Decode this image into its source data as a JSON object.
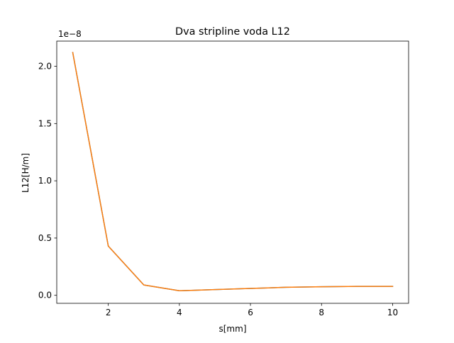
{
  "chart_data": {
    "type": "line",
    "title": "Dva stripline voda L12",
    "xlabel": "s[mm]",
    "ylabel": "L12[H/m]",
    "y_offset_label": "1e−8",
    "y_scale": 1e-08,
    "xlim": [
      0.55,
      10.45
    ],
    "ylim": [
      -0.07,
      2.22
    ],
    "x_ticks": [
      2,
      4,
      6,
      8,
      10
    ],
    "x_tick_labels": [
      "2",
      "4",
      "6",
      "8",
      "10"
    ],
    "y_ticks": [
      0.0,
      0.5,
      1.0,
      1.5,
      2.0
    ],
    "y_tick_labels": [
      "0.0",
      "0.5",
      "1.0",
      "1.5",
      "2.0"
    ],
    "grid": false,
    "legend": "none",
    "x": [
      1,
      2,
      3,
      4,
      5,
      6,
      7,
      8,
      9,
      10
    ],
    "series": [
      {
        "values": [
          2.12,
          0.43,
          0.09,
          0.04,
          0.05,
          0.06,
          0.07,
          0.075,
          0.078,
          0.078
        ],
        "color": "#1f77b4"
      },
      {
        "values": [
          2.12,
          0.43,
          0.09,
          0.04,
          0.05,
          0.06,
          0.07,
          0.075,
          0.078,
          0.078
        ],
        "color": "#ff7f0e"
      }
    ]
  }
}
